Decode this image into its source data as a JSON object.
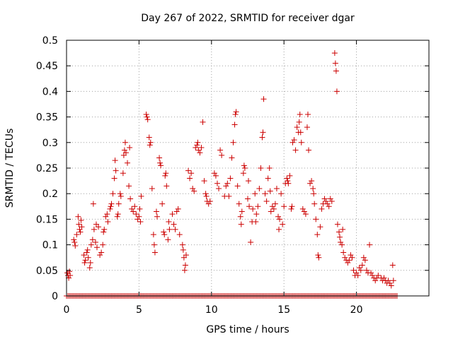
{
  "chart_data": {
    "type": "scatter",
    "title": "Day 267 of 2022, SRMTID for receiver dgar",
    "xlabel": "GPS time / hours",
    "ylabel": "SRMTID / TECUs",
    "xlim": [
      0,
      25
    ],
    "ylim": [
      0,
      0.5
    ],
    "xticks": [
      0,
      5,
      10,
      15,
      20
    ],
    "yticks": [
      0,
      0.05,
      0.1,
      0.15,
      0.2,
      0.25,
      0.3,
      0.35,
      0.4,
      0.45,
      0.5
    ],
    "xtick_labels": [
      "0",
      "5",
      "10",
      "15",
      "20"
    ],
    "ytick_labels": [
      "0",
      "0.05",
      "0.1",
      "0.15",
      "0.2",
      "0.25",
      "0.3",
      "0.35",
      "0.4",
      "0.45",
      "0.5"
    ],
    "grid": true,
    "marker": "+",
    "color": "#cc0000",
    "series": [
      {
        "name": "SRMTID",
        "points": [
          [
            0.05,
            0.045
          ],
          [
            0.1,
            0.04
          ],
          [
            0.15,
            0.035
          ],
          [
            0.2,
            0.048
          ],
          [
            0.25,
            0.04
          ],
          [
            0.5,
            0.11
          ],
          [
            0.55,
            0.105
          ],
          [
            0.6,
            0.098
          ],
          [
            0.7,
            0.12
          ],
          [
            0.8,
            0.155
          ],
          [
            0.85,
            0.14
          ],
          [
            0.9,
            0.13
          ],
          [
            0.95,
            0.125
          ],
          [
            1.0,
            0.148
          ],
          [
            1.05,
            0.135
          ],
          [
            1.2,
            0.08
          ],
          [
            1.25,
            0.065
          ],
          [
            1.3,
            0.07
          ],
          [
            1.4,
            0.085
          ],
          [
            1.45,
            0.09
          ],
          [
            1.5,
            0.075
          ],
          [
            1.6,
            0.055
          ],
          [
            1.65,
            0.065
          ],
          [
            1.7,
            0.1
          ],
          [
            1.8,
            0.11
          ],
          [
            1.85,
            0.18
          ],
          [
            1.9,
            0.13
          ],
          [
            2.0,
            0.105
          ],
          [
            2.05,
            0.14
          ],
          [
            2.1,
            0.095
          ],
          [
            2.2,
            0.135
          ],
          [
            2.3,
            0.08
          ],
          [
            2.4,
            0.085
          ],
          [
            2.5,
            0.1
          ],
          [
            2.55,
            0.125
          ],
          [
            2.6,
            0.13
          ],
          [
            2.7,
            0.155
          ],
          [
            2.8,
            0.16
          ],
          [
            2.85,
            0.145
          ],
          [
            3.0,
            0.17
          ],
          [
            3.05,
            0.175
          ],
          [
            3.1,
            0.18
          ],
          [
            3.2,
            0.2
          ],
          [
            3.3,
            0.23
          ],
          [
            3.35,
            0.265
          ],
          [
            3.4,
            0.245
          ],
          [
            3.5,
            0.155
          ],
          [
            3.55,
            0.16
          ],
          [
            3.6,
            0.18
          ],
          [
            3.7,
            0.2
          ],
          [
            3.75,
            0.195
          ],
          [
            3.9,
            0.24
          ],
          [
            3.95,
            0.275
          ],
          [
            4.0,
            0.285
          ],
          [
            4.05,
            0.3
          ],
          [
            4.1,
            0.28
          ],
          [
            4.2,
            0.26
          ],
          [
            4.3,
            0.215
          ],
          [
            4.35,
            0.29
          ],
          [
            4.4,
            0.19
          ],
          [
            4.5,
            0.17
          ],
          [
            4.6,
            0.165
          ],
          [
            4.7,
            0.175
          ],
          [
            4.8,
            0.16
          ],
          [
            4.9,
            0.15
          ],
          [
            5.0,
            0.155
          ],
          [
            5.05,
            0.17
          ],
          [
            5.1,
            0.145
          ],
          [
            5.15,
            0.195
          ],
          [
            5.5,
            0.355
          ],
          [
            5.55,
            0.35
          ],
          [
            5.6,
            0.345
          ],
          [
            5.7,
            0.31
          ],
          [
            5.75,
            0.295
          ],
          [
            5.8,
            0.3
          ],
          [
            5.9,
            0.21
          ],
          [
            6.0,
            0.12
          ],
          [
            6.05,
            0.1
          ],
          [
            6.1,
            0.085
          ],
          [
            6.2,
            0.165
          ],
          [
            6.25,
            0.155
          ],
          [
            6.4,
            0.27
          ],
          [
            6.45,
            0.26
          ],
          [
            6.5,
            0.255
          ],
          [
            6.6,
            0.18
          ],
          [
            6.7,
            0.125
          ],
          [
            6.75,
            0.12
          ],
          [
            6.8,
            0.235
          ],
          [
            6.85,
            0.24
          ],
          [
            6.9,
            0.215
          ],
          [
            7.0,
            0.11
          ],
          [
            7.05,
            0.145
          ],
          [
            7.1,
            0.13
          ],
          [
            7.3,
            0.16
          ],
          [
            7.4,
            0.14
          ],
          [
            7.5,
            0.13
          ],
          [
            7.6,
            0.165
          ],
          [
            7.7,
            0.17
          ],
          [
            7.8,
            0.12
          ],
          [
            8.0,
            0.1
          ],
          [
            8.05,
            0.09
          ],
          [
            8.1,
            0.075
          ],
          [
            8.15,
            0.05
          ],
          [
            8.2,
            0.06
          ],
          [
            8.25,
            0.08
          ],
          [
            8.4,
            0.245
          ],
          [
            8.5,
            0.23
          ],
          [
            8.6,
            0.24
          ],
          [
            8.7,
            0.21
          ],
          [
            8.8,
            0.205
          ],
          [
            8.9,
            0.29
          ],
          [
            9.0,
            0.295
          ],
          [
            9.05,
            0.3
          ],
          [
            9.1,
            0.285
          ],
          [
            9.2,
            0.28
          ],
          [
            9.3,
            0.29
          ],
          [
            9.4,
            0.34
          ],
          [
            9.5,
            0.225
          ],
          [
            9.6,
            0.2
          ],
          [
            9.65,
            0.195
          ],
          [
            9.7,
            0.185
          ],
          [
            9.8,
            0.18
          ],
          [
            9.9,
            0.185
          ],
          [
            10.2,
            0.24
          ],
          [
            10.3,
            0.235
          ],
          [
            10.4,
            0.22
          ],
          [
            10.5,
            0.21
          ],
          [
            10.6,
            0.285
          ],
          [
            10.7,
            0.275
          ],
          [
            10.9,
            0.195
          ],
          [
            11.0,
            0.215
          ],
          [
            11.1,
            0.22
          ],
          [
            11.2,
            0.195
          ],
          [
            11.3,
            0.23
          ],
          [
            11.4,
            0.27
          ],
          [
            11.5,
            0.3
          ],
          [
            11.6,
            0.335
          ],
          [
            11.65,
            0.355
          ],
          [
            11.7,
            0.36
          ],
          [
            11.8,
            0.215
          ],
          [
            11.9,
            0.18
          ],
          [
            12.0,
            0.155
          ],
          [
            12.05,
            0.14
          ],
          [
            12.1,
            0.165
          ],
          [
            12.2,
            0.24
          ],
          [
            12.25,
            0.255
          ],
          [
            12.3,
            0.25
          ],
          [
            12.5,
            0.19
          ],
          [
            12.55,
            0.225
          ],
          [
            12.6,
            0.175
          ],
          [
            12.7,
            0.105
          ],
          [
            12.8,
            0.145
          ],
          [
            12.85,
            0.17
          ],
          [
            13.0,
            0.2
          ],
          [
            13.05,
            0.145
          ],
          [
            13.1,
            0.16
          ],
          [
            13.2,
            0.175
          ],
          [
            13.3,
            0.21
          ],
          [
            13.4,
            0.25
          ],
          [
            13.5,
            0.31
          ],
          [
            13.55,
            0.32
          ],
          [
            13.6,
            0.385
          ],
          [
            13.7,
            0.2
          ],
          [
            13.8,
            0.185
          ],
          [
            13.9,
            0.23
          ],
          [
            14.0,
            0.25
          ],
          [
            14.05,
            0.205
          ],
          [
            14.1,
            0.165
          ],
          [
            14.2,
            0.175
          ],
          [
            14.3,
            0.17
          ],
          [
            14.4,
            0.18
          ],
          [
            14.5,
            0.21
          ],
          [
            14.6,
            0.155
          ],
          [
            14.65,
            0.13
          ],
          [
            14.7,
            0.15
          ],
          [
            14.8,
            0.2
          ],
          [
            14.9,
            0.14
          ],
          [
            15.0,
            0.175
          ],
          [
            15.1,
            0.22
          ],
          [
            15.2,
            0.23
          ],
          [
            15.25,
            0.225
          ],
          [
            15.3,
            0.22
          ],
          [
            15.4,
            0.235
          ],
          [
            15.5,
            0.17
          ],
          [
            15.55,
            0.175
          ],
          [
            15.6,
            0.3
          ],
          [
            15.7,
            0.305
          ],
          [
            15.8,
            0.285
          ],
          [
            15.9,
            0.33
          ],
          [
            16.0,
            0.32
          ],
          [
            16.05,
            0.34
          ],
          [
            16.1,
            0.355
          ],
          [
            16.15,
            0.32
          ],
          [
            16.2,
            0.3
          ],
          [
            16.3,
            0.17
          ],
          [
            16.4,
            0.165
          ],
          [
            16.5,
            0.16
          ],
          [
            16.6,
            0.33
          ],
          [
            16.65,
            0.355
          ],
          [
            16.7,
            0.285
          ],
          [
            16.8,
            0.22
          ],
          [
            16.9,
            0.225
          ],
          [
            17.0,
            0.21
          ],
          [
            17.05,
            0.2
          ],
          [
            17.1,
            0.18
          ],
          [
            17.2,
            0.15
          ],
          [
            17.3,
            0.12
          ],
          [
            17.35,
            0.08
          ],
          [
            17.4,
            0.075
          ],
          [
            17.5,
            0.135
          ],
          [
            17.6,
            0.17
          ],
          [
            17.7,
            0.18
          ],
          [
            17.8,
            0.19
          ],
          [
            17.9,
            0.185
          ],
          [
            18.0,
            0.18
          ],
          [
            18.1,
            0.175
          ],
          [
            18.2,
            0.19
          ],
          [
            18.3,
            0.185
          ],
          [
            18.5,
            0.475
          ],
          [
            18.55,
            0.455
          ],
          [
            18.6,
            0.44
          ],
          [
            18.65,
            0.4
          ],
          [
            18.7,
            0.14
          ],
          [
            18.8,
            0.125
          ],
          [
            18.85,
            0.115
          ],
          [
            18.9,
            0.105
          ],
          [
            19.0,
            0.1
          ],
          [
            19.05,
            0.13
          ],
          [
            19.1,
            0.085
          ],
          [
            19.2,
            0.075
          ],
          [
            19.3,
            0.07
          ],
          [
            19.4,
            0.065
          ],
          [
            19.5,
            0.07
          ],
          [
            19.6,
            0.08
          ],
          [
            19.7,
            0.075
          ],
          [
            19.8,
            0.05
          ],
          [
            19.9,
            0.04
          ],
          [
            20.0,
            0.045
          ],
          [
            20.1,
            0.04
          ],
          [
            20.2,
            0.055
          ],
          [
            20.3,
            0.05
          ],
          [
            20.4,
            0.06
          ],
          [
            20.5,
            0.075
          ],
          [
            20.6,
            0.07
          ],
          [
            20.7,
            0.05
          ],
          [
            20.8,
            0.045
          ],
          [
            20.9,
            0.1
          ],
          [
            21.0,
            0.045
          ],
          [
            21.1,
            0.04
          ],
          [
            21.2,
            0.035
          ],
          [
            21.3,
            0.03
          ],
          [
            21.4,
            0.035
          ],
          [
            21.5,
            0.04
          ],
          [
            21.7,
            0.035
          ],
          [
            21.8,
            0.03
          ],
          [
            21.9,
            0.035
          ],
          [
            22.0,
            0.03
          ],
          [
            22.1,
            0.025
          ],
          [
            22.2,
            0.03
          ],
          [
            22.3,
            0.025
          ],
          [
            22.4,
            0.02
          ],
          [
            22.5,
            0.06
          ],
          [
            22.55,
            0.03
          ]
        ]
      },
      {
        "name": "SRMTID baseline",
        "x_start": 0,
        "x_end": 22.8,
        "x_step": 0.1,
        "y": 0
      }
    ]
  }
}
